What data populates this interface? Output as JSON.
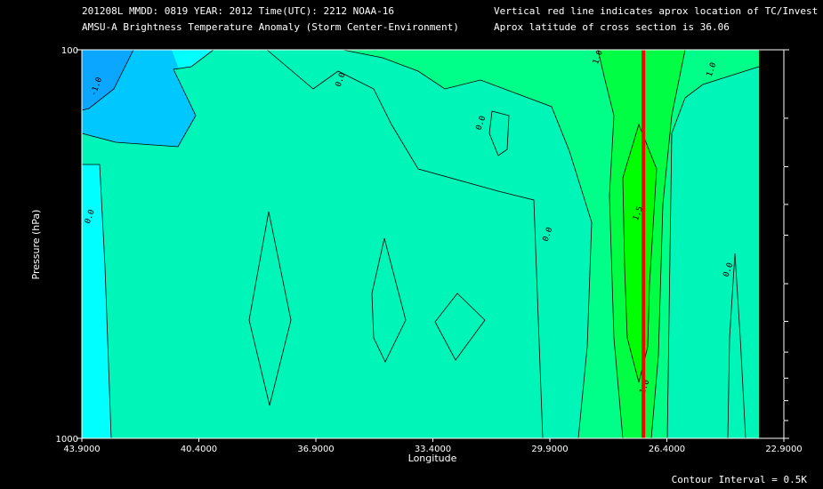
{
  "header": {
    "line1_left": "201208L  MMDD: 0819 YEAR: 2012 Time(UTC): 2212 NOAA-16",
    "line2_left": "AMSU-A Brightness Temperature Anomaly (Storm Center-Environment)",
    "line1_right": "Vertical red line indicates aprox location of TC/Invest",
    "line2_right": "Aprox latitude of cross section is 36.06"
  },
  "footer": {
    "contour_interval": "Contour Interval = 0.5K"
  },
  "colors": {
    "bg": "#000000",
    "level_neg1": "#0aa6ff",
    "level_neg05": "#00c8ff",
    "level_0": "#00ffff",
    "level_05": "#00f5b8",
    "level_1": "#00ff88",
    "level_15": "#00ff44",
    "level_2": "#00ff00",
    "tc_line": "#ff0000"
  },
  "chart_data": {
    "type": "contour",
    "x_label": "Longitude",
    "y_label": "Pressure (hPa)",
    "y_scale": "log",
    "xlim": [
      43.9,
      22.9
    ],
    "ylim": [
      1000,
      100
    ],
    "x_ticks": [
      "43.9000",
      "40.4000",
      "36.9000",
      "33.4000",
      "29.9000",
      "26.4000",
      "22.9000"
    ],
    "x_tick_values": [
      43.9,
      40.4,
      36.9,
      33.4,
      29.9,
      26.4,
      22.9
    ],
    "y_tick_labels": [
      "100",
      "1000"
    ],
    "y_tick_values": [
      100,
      1000
    ],
    "y_minor_ticks": [
      150,
      200,
      250,
      300,
      400,
      500,
      600,
      700,
      800,
      900
    ],
    "contour_interval_K": 0.5,
    "tc_longitude": 27.1,
    "contour_labels": [
      {
        "text": "-1.0",
        "lon": 43.4,
        "p": 125
      },
      {
        "text": "0.0",
        "lon": 36.1,
        "p": 120
      },
      {
        "text": "0.0",
        "lon": 31.9,
        "p": 155
      },
      {
        "text": "0.0",
        "lon": 43.6,
        "p": 270
      },
      {
        "text": "0.0",
        "lon": 29.9,
        "p": 300
      },
      {
        "text": "1.0",
        "lon": 28.4,
        "p": 105
      },
      {
        "text": "1.0",
        "lon": 25.0,
        "p": 113
      },
      {
        "text": "1.5",
        "lon": 27.2,
        "p": 265
      },
      {
        "text": "1.0",
        "lon": 27.0,
        "p": 740
      },
      {
        "text": "0.0",
        "lon": 24.5,
        "p": 370
      }
    ]
  }
}
